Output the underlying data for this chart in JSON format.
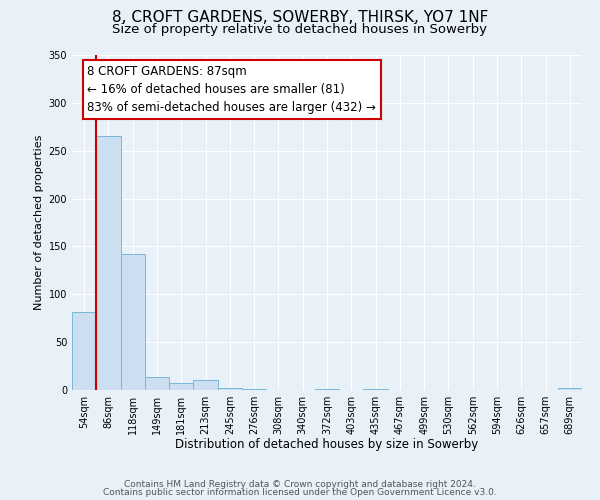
{
  "title": "8, CROFT GARDENS, SOWERBY, THIRSK, YO7 1NF",
  "subtitle": "Size of property relative to detached houses in Sowerby",
  "xlabel": "Distribution of detached houses by size in Sowerby",
  "ylabel": "Number of detached properties",
  "bin_labels": [
    "54sqm",
    "86sqm",
    "118sqm",
    "149sqm",
    "181sqm",
    "213sqm",
    "245sqm",
    "276sqm",
    "308sqm",
    "340sqm",
    "372sqm",
    "403sqm",
    "435sqm",
    "467sqm",
    "499sqm",
    "530sqm",
    "562sqm",
    "594sqm",
    "626sqm",
    "657sqm",
    "689sqm"
  ],
  "bar_heights": [
    82,
    265,
    142,
    14,
    7,
    10,
    2,
    1,
    0,
    0,
    1,
    0,
    1,
    0,
    0,
    0,
    0,
    0,
    0,
    0,
    2
  ],
  "bar_color": "#ccdff0",
  "bar_edge_color": "#7ab8d9",
  "vline_color": "#cc0000",
  "annotation_line1": "8 CROFT GARDENS: 87sqm",
  "annotation_line2": "← 16% of detached houses are smaller (81)",
  "annotation_line3": "83% of semi-detached houses are larger (432) →",
  "ylim": [
    0,
    350
  ],
  "yticks": [
    0,
    50,
    100,
    150,
    200,
    250,
    300,
    350
  ],
  "footer_line1": "Contains HM Land Registry data © Crown copyright and database right 2024.",
  "footer_line2": "Contains public sector information licensed under the Open Government Licence v3.0.",
  "background_color": "#e8f0f8",
  "plot_bg_color": "#e8f0f8",
  "grid_color": "#ffffff",
  "title_fontsize": 11,
  "subtitle_fontsize": 9.5,
  "xlabel_fontsize": 8.5,
  "ylabel_fontsize": 8,
  "tick_fontsize": 7,
  "footer_fontsize": 6.5,
  "annotation_fontsize": 8.5
}
